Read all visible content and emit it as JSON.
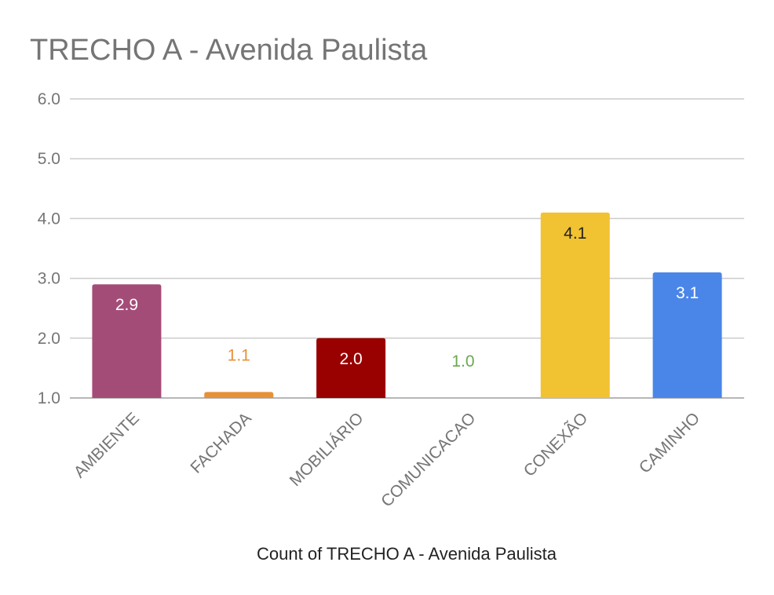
{
  "chart_data": {
    "type": "bar",
    "title": "TRECHO A - Avenida Paulista",
    "xlabel": "Count of TRECHO A - Avenida Paulista",
    "ylabel": "",
    "categories": [
      "AMBIENTE",
      "FACHADA",
      "MOBILIÁRIO",
      "COMUNICACAO",
      "CONEXÃO",
      "CAMINHO"
    ],
    "values": [
      2.9,
      1.1,
      2.0,
      1.0,
      4.1,
      3.1
    ],
    "data_labels": [
      "2.9",
      "1.1",
      "2.0",
      "1.0",
      "4.1",
      "3.1"
    ],
    "colors": [
      "#a44c78",
      "#e69138",
      "#990000",
      "#6aa84f",
      "#f1c232",
      "#4a86e8"
    ],
    "label_colors": [
      "#ffffff",
      "#e69138",
      "#ffffff",
      "#6aa84f",
      "#222222",
      "#ffffff"
    ],
    "ylim": [
      1.0,
      6.0
    ],
    "yticks": [
      "1.0",
      "2.0",
      "3.0",
      "4.0",
      "5.0",
      "6.0"
    ],
    "grid": true,
    "legend": "none"
  }
}
